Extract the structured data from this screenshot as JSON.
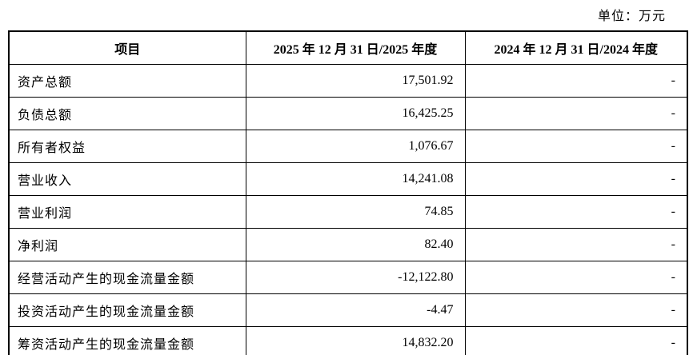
{
  "unit_label": "单位：万元",
  "table": {
    "headers": [
      "项目",
      "2025 年 12 月 31 日/2025 年度",
      "2024 年 12 月 31 日/2024 年度"
    ],
    "rows": [
      {
        "item": "资产总额",
        "v2025": "17,501.92",
        "v2024": "-"
      },
      {
        "item": "负债总额",
        "v2025": "16,425.25",
        "v2024": "-"
      },
      {
        "item": "所有者权益",
        "v2025": "1,076.67",
        "v2024": "-"
      },
      {
        "item": "营业收入",
        "v2025": "14,241.08",
        "v2024": "-"
      },
      {
        "item": "营业利润",
        "v2025": "74.85",
        "v2024": "-"
      },
      {
        "item": "净利润",
        "v2025": "82.40",
        "v2024": "-"
      },
      {
        "item": "经营活动产生的现金流量金额",
        "v2025": "-12,122.80",
        "v2024": "-"
      },
      {
        "item": "投资活动产生的现金流量金额",
        "v2025": "-4.47",
        "v2024": "-"
      },
      {
        "item": "筹资活动产生的现金流量金额",
        "v2025": "14,832.20",
        "v2024": "-"
      }
    ]
  }
}
